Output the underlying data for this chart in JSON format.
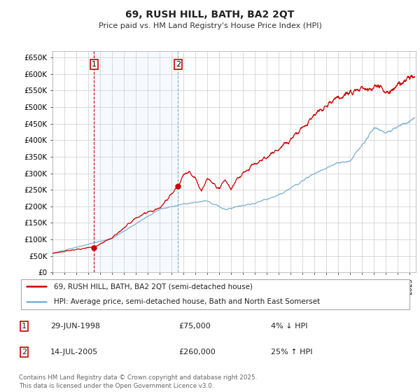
{
  "title": "69, RUSH HILL, BATH, BA2 2QT",
  "subtitle": "Price paid vs. HM Land Registry's House Price Index (HPI)",
  "ylim": [
    0,
    670000
  ],
  "xlim_start": 1995.0,
  "xlim_end": 2025.5,
  "purchase1_x": 1998.49,
  "purchase1_y": 75000,
  "purchase2_x": 2005.54,
  "purchase2_y": 260000,
  "legend_line1": "69, RUSH HILL, BATH, BA2 2QT (semi-detached house)",
  "legend_line2": "HPI: Average price, semi-detached house, Bath and North East Somerset",
  "footnote": "Contains HM Land Registry data © Crown copyright and database right 2025.\nThis data is licensed under the Open Government Licence v3.0.",
  "line_color_red": "#cc0000",
  "line_color_blue": "#7ab0d4",
  "shade_color": "#ddeeff",
  "bg_color": "#ffffff",
  "grid_color": "#cccccc"
}
